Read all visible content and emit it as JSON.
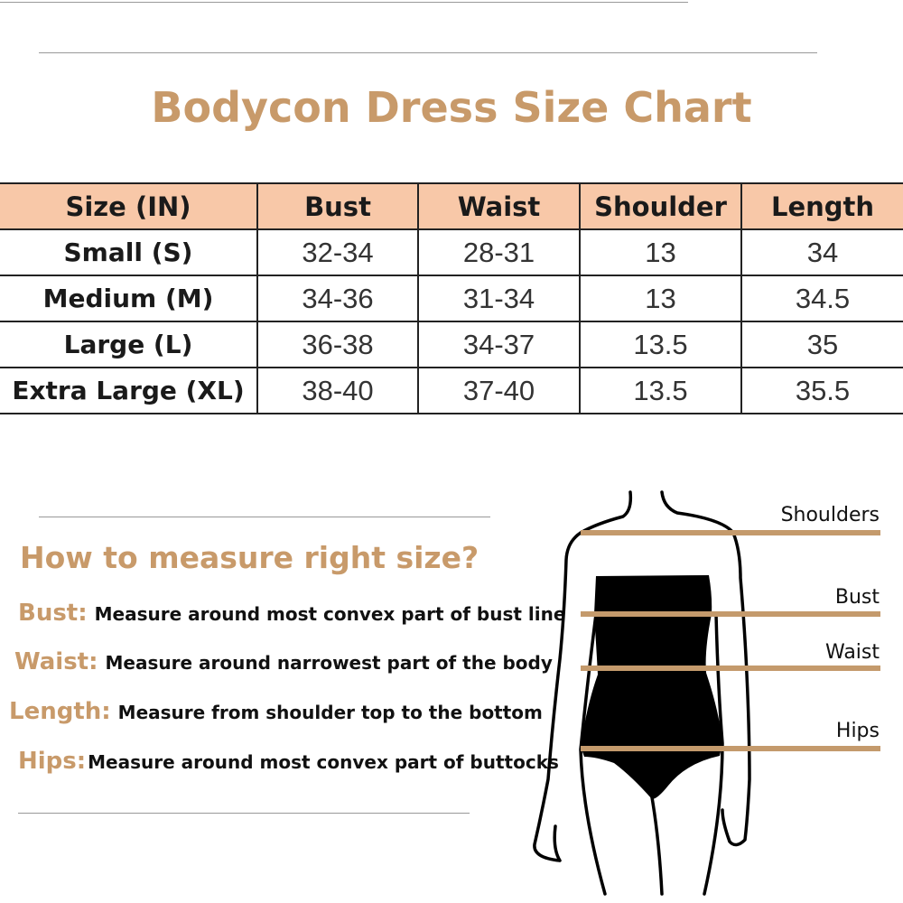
{
  "title": "Bodycon Dress Size Chart",
  "table": {
    "headers": [
      "Size (IN)",
      "Bust",
      "Waist",
      "Shoulder",
      "Length"
    ],
    "rows": [
      [
        "Small (S)",
        "32-34",
        "28-31",
        "13",
        "34"
      ],
      [
        "Medium (M)",
        "34-36",
        "31-34",
        "13",
        "34.5"
      ],
      [
        "Large (L)",
        "36-38",
        "34-37",
        "13.5",
        "35"
      ],
      [
        "Extra Large (XL)",
        "38-40",
        "37-40",
        "13.5",
        "35.5"
      ]
    ]
  },
  "howto": {
    "heading": "How to measure right size?",
    "items": [
      {
        "label": "Bust:",
        "text": "Measure around most convex part of bust line"
      },
      {
        "label": "Waist:",
        "text": "Measure around narrowest part of the body"
      },
      {
        "label": "Length:",
        "text": "Measure from shoulder top to the bottom"
      },
      {
        "label": "Hips:",
        "text": "Measure around most convex part of  buttocks"
      }
    ]
  },
  "figure": {
    "labels": [
      "Shoulders",
      "Bust",
      "Waist",
      "Hips"
    ]
  },
  "colors": {
    "accent": "#c89a6a",
    "header_bg": "#f8c8a8",
    "line": "#c49a6c"
  }
}
